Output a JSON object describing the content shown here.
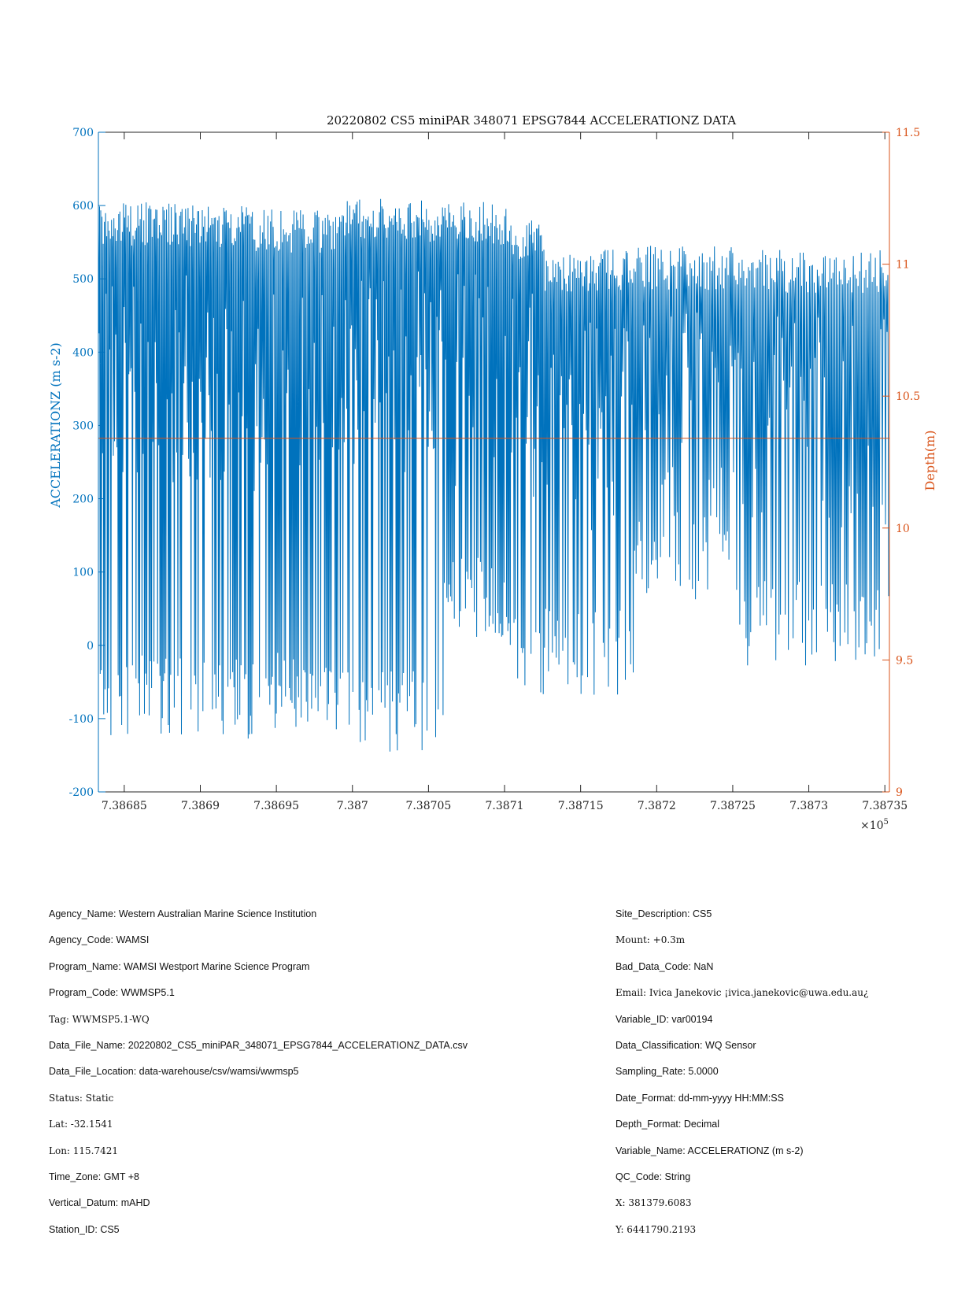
{
  "chart_data": {
    "type": "line",
    "title": "20220802 CS5 miniPAR 348071 EPSG7844 ACCELERATIONZ DATA",
    "ylabel": "ACCELERATIONZ (m s-2)",
    "y2label": "Depth(m)",
    "xlabel": "",
    "x_exponent": "×10",
    "x_exponent_power": "5",
    "xlim": [
      7.386833,
      7.387353
    ],
    "ylim": [
      -200,
      700
    ],
    "y2lim": [
      9,
      11.5
    ],
    "x_ticks": [
      7.38685,
      7.3869,
      7.38695,
      7.387,
      7.38705,
      7.3871,
      7.38715,
      7.3872,
      7.38725,
      7.3873,
      7.38735
    ],
    "x_tick_labels": [
      "7.38685",
      "7.3869",
      "7.38695",
      "7.387",
      "7.38705",
      "7.3871",
      "7.38715",
      "7.3872",
      "7.38725",
      "7.3873",
      "7.38735"
    ],
    "y_ticks": [
      -200,
      -100,
      0,
      100,
      200,
      300,
      400,
      500,
      600,
      700
    ],
    "y_tick_labels": [
      "-200",
      "-100",
      "0",
      "100",
      "200",
      "300",
      "400",
      "500",
      "600",
      "700"
    ],
    "y2_ticks": [
      9,
      9.5,
      10,
      10.5,
      11,
      11.5
    ],
    "y2_tick_labels": [
      "9",
      "9.5",
      "10",
      "10.5",
      "11",
      "11.5"
    ],
    "grid": false,
    "colors": {
      "acceleration": "#0072BD",
      "depth": "#D95319",
      "axis": "#262626"
    },
    "series": [
      {
        "axis": "left",
        "color": "#0072BD",
        "segments": [
          {
            "x_start": 7.386833,
            "x_end": 7.386888,
            "upper": 605,
            "lower": -130,
            "n": 70,
            "seed": 11
          },
          {
            "x_start": 7.386888,
            "x_end": 7.386935,
            "upper": 603,
            "lower": -130,
            "n": 60,
            "seed": 23
          },
          {
            "x_start": 7.386935,
            "x_end": 7.386995,
            "upper": 595,
            "lower": -130,
            "n": 70,
            "seed": 37
          },
          {
            "x_start": 7.386995,
            "x_end": 7.38706,
            "upper": 610,
            "lower": -145,
            "n": 80,
            "seed": 41
          },
          {
            "x_start": 7.38706,
            "x_end": 7.387105,
            "upper": 605,
            "lower": 0,
            "n": 55,
            "seed": 53
          },
          {
            "x_start": 7.387105,
            "x_end": 7.387125,
            "upper": 585,
            "lower": -80,
            "n": 25,
            "seed": 61
          },
          {
            "x_start": 7.387125,
            "x_end": 7.387185,
            "upper": 540,
            "lower": -70,
            "n": 70,
            "seed": 71
          },
          {
            "x_start": 7.387185,
            "x_end": 7.38725,
            "upper": 545,
            "lower": 60,
            "n": 65,
            "seed": 83
          },
          {
            "x_start": 7.38725,
            "x_end": 7.387353,
            "upper": 540,
            "lower": -30,
            "n": 100,
            "seed": 97
          }
        ]
      },
      {
        "axis": "right",
        "color": "#D95319",
        "x": [
          7.386833,
          7.387353
        ],
        "y": [
          10.34,
          10.34
        ]
      }
    ]
  },
  "metadata": {
    "left": [
      {
        "text": "Agency_Name: Western Australian Marine Science Institution",
        "style": "sans"
      },
      {
        "text": "Agency_Code: WAMSI",
        "style": "sans"
      },
      {
        "text": "Program_Name: WAMSI Westport Marine Science Program",
        "style": "sans"
      },
      {
        "text": "Program_Code: WWMSP5.1",
        "style": "sans"
      },
      {
        "text": "Tag: WWMSP5.1-WQ",
        "style": "serif"
      },
      {
        "text": "Data_File_Name: 20220802_CS5_miniPAR_348071_EPSG7844_ACCELERATIONZ_DATA.csv",
        "style": "sans"
      },
      {
        "text": "Data_File_Location: data-warehouse/csv/wamsi/wwmsp5",
        "style": "sans"
      },
      {
        "text": "Status: Static",
        "style": "serif"
      },
      {
        "text": "Lat: -32.1541",
        "style": "serif"
      },
      {
        "text": "Lon: 115.7421",
        "style": "serif"
      },
      {
        "text": "Time_Zone: GMT +8",
        "style": "sans"
      },
      {
        "text": "Vertical_Datum: mAHD",
        "style": "sans"
      },
      {
        "text": "Station_ID: CS5",
        "style": "sans"
      }
    ],
    "right": [
      {
        "text": "Site_Description: CS5",
        "style": "sans"
      },
      {
        "text": "Mount: +0.3m",
        "style": "serif"
      },
      {
        "text": "Bad_Data_Code: NaN",
        "style": "sans"
      },
      {
        "text": "Email: Ivica Janekovic ¡ivica.janekovic@uwa.edu.au¿",
        "style": "serif"
      },
      {
        "text": "Variable_ID: var00194",
        "style": "sans"
      },
      {
        "text": "Data_Classification: WQ Sensor",
        "style": "sans"
      },
      {
        "text": "Sampling_Rate: 5.0000",
        "style": "sans"
      },
      {
        "text": "Date_Format: dd-mm-yyyy HH:MM:SS",
        "style": "sans"
      },
      {
        "text": "Depth_Format: Decimal",
        "style": "sans"
      },
      {
        "text": "Variable_Name: ACCELERATIONZ (m s-2)",
        "style": "sans"
      },
      {
        "text": "QC_Code: String",
        "style": "sans"
      },
      {
        "text": "X: 381379.6083",
        "style": "serif"
      },
      {
        "text": "Y: 6441790.2193",
        "style": "serif"
      }
    ]
  }
}
